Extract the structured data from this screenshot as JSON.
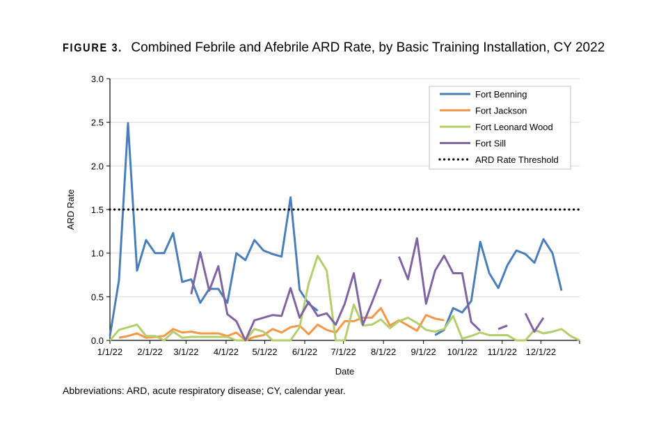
{
  "figure_label": "FIGURE 3.",
  "footnote": "Abbreviations: ARD, acute respiratory disease; CY, calendar year.",
  "chart_data": {
    "type": "line",
    "title": "Combined Febrile and Afebrile ARD Rate, by Basic Training Installation, CY 2022",
    "xlabel": "Date",
    "ylabel": "ARD Rate",
    "ylim": [
      0,
      3.0
    ],
    "yticks": [
      "0.0",
      "0.5",
      "1.0",
      "1.5",
      "2.0",
      "2.5",
      "3.0"
    ],
    "xlim": [
      "2022-01-01",
      "2022-12-31"
    ],
    "xticks": [
      {
        "date": "2022-01-01",
        "label": "1/1/22"
      },
      {
        "date": "2022-02-01",
        "label": "2/1/22"
      },
      {
        "date": "2022-03-01",
        "label": "3/1/22"
      },
      {
        "date": "2022-04-01",
        "label": "4/1/22"
      },
      {
        "date": "2022-05-01",
        "label": "5/1/22"
      },
      {
        "date": "2022-06-01",
        "label": "6/1/22"
      },
      {
        "date": "2022-07-01",
        "label": "7/1/22"
      },
      {
        "date": "2022-08-01",
        "label": "8/1/22"
      },
      {
        "date": "2022-09-01",
        "label": "9/1/22"
      },
      {
        "date": "2022-10-01",
        "label": "10/1/22"
      },
      {
        "date": "2022-11-01",
        "label": "11/1/22"
      },
      {
        "date": "2022-12-01",
        "label": "12/1/22"
      }
    ],
    "grid": true,
    "legend_position": "top-right",
    "x": [
      "2022-01-01",
      "2022-01-08",
      "2022-01-15",
      "2022-01-22",
      "2022-01-29",
      "2022-02-05",
      "2022-02-12",
      "2022-02-19",
      "2022-02-26",
      "2022-03-05",
      "2022-03-12",
      "2022-03-19",
      "2022-03-26",
      "2022-04-02",
      "2022-04-09",
      "2022-04-16",
      "2022-04-23",
      "2022-04-30",
      "2022-05-07",
      "2022-05-14",
      "2022-05-21",
      "2022-05-28",
      "2022-06-04",
      "2022-06-11",
      "2022-06-18",
      "2022-06-25",
      "2022-07-02",
      "2022-07-09",
      "2022-07-16",
      "2022-07-23",
      "2022-07-30",
      "2022-08-06",
      "2022-08-13",
      "2022-08-20",
      "2022-08-27",
      "2022-09-03",
      "2022-09-10",
      "2022-09-17",
      "2022-09-24",
      "2022-10-01",
      "2022-10-08",
      "2022-10-15",
      "2022-10-22",
      "2022-10-29",
      "2022-11-05",
      "2022-11-12",
      "2022-11-19",
      "2022-11-26",
      "2022-12-03",
      "2022-12-10",
      "2022-12-17",
      "2022-12-24",
      "2022-12-31"
    ],
    "series": [
      {
        "name": "Fort Benning",
        "color": "#4a7ebb",
        "style": "solid",
        "values": [
          0.05,
          0.69,
          2.49,
          0.8,
          1.15,
          1.0,
          1.0,
          1.23,
          0.67,
          0.7,
          0.43,
          0.59,
          0.59,
          0.43,
          1.0,
          0.92,
          1.15,
          1.03,
          0.99,
          0.96,
          1.64,
          0.58,
          0.42,
          0.34,
          null,
          null,
          null,
          null,
          null,
          null,
          null,
          null,
          null,
          null,
          null,
          null,
          0.06,
          0.12,
          0.37,
          0.32,
          0.45,
          1.13,
          0.77,
          0.6,
          0.86,
          1.03,
          0.99,
          0.89,
          1.16,
          1.0,
          0.57,
          null,
          null
        ]
      },
      {
        "name": "Fort Jackson",
        "color": "#f79646",
        "style": "solid",
        "values": [
          null,
          0.03,
          0.05,
          0.08,
          0.03,
          0.04,
          0.05,
          0.13,
          0.09,
          0.1,
          0.08,
          0.08,
          0.08,
          0.05,
          0.09,
          0.0,
          0.04,
          0.06,
          0.13,
          0.09,
          0.15,
          0.17,
          0.07,
          0.18,
          0.12,
          0.09,
          0.22,
          0.22,
          0.26,
          0.26,
          0.37,
          0.17,
          0.23,
          0.17,
          0.11,
          0.29,
          0.25,
          0.23,
          null,
          null,
          null,
          null,
          null,
          null,
          null,
          null,
          null,
          null,
          null,
          null,
          null,
          null,
          null
        ]
      },
      {
        "name": "Fort Leonard Wood",
        "color": "#b3cf6b",
        "style": "solid",
        "values": [
          0.0,
          0.12,
          0.15,
          0.18,
          0.05,
          0.05,
          0.0,
          0.1,
          0.03,
          0.04,
          0.04,
          0.04,
          0.04,
          0.04,
          0.0,
          0.0,
          0.13,
          0.1,
          0.0,
          0.0,
          0.0,
          0.15,
          0.65,
          0.97,
          0.8,
          0.0,
          0.0,
          0.41,
          0.17,
          0.18,
          0.24,
          0.14,
          0.22,
          0.26,
          0.2,
          0.12,
          0.1,
          0.13,
          0.28,
          0.02,
          0.05,
          0.09,
          0.06,
          0.06,
          0.06,
          0.0,
          0.0,
          0.12,
          0.08,
          0.1,
          0.13,
          0.05,
          0.0
        ]
      },
      {
        "name": "Fort Sill",
        "color": "#8064a2",
        "style": "solid",
        "values": [
          null,
          null,
          null,
          null,
          null,
          null,
          null,
          null,
          null,
          0.53,
          1.01,
          0.57,
          0.85,
          0.3,
          0.22,
          0.0,
          0.23,
          0.26,
          0.29,
          0.28,
          0.6,
          0.26,
          0.44,
          0.28,
          0.31,
          0.18,
          0.42,
          0.77,
          0.18,
          0.43,
          0.7,
          null,
          0.96,
          0.7,
          1.17,
          0.42,
          0.8,
          0.97,
          0.77,
          0.77,
          0.21,
          0.11,
          null,
          0.13,
          0.17,
          null,
          0.31,
          0.1,
          0.26,
          null,
          null,
          null,
          null
        ]
      },
      {
        "name": "ARD Rate Threshold",
        "color": "#000000",
        "style": "dotted",
        "values": [
          1.5,
          1.5,
          1.5,
          1.5,
          1.5,
          1.5,
          1.5,
          1.5,
          1.5,
          1.5,
          1.5,
          1.5,
          1.5,
          1.5,
          1.5,
          1.5,
          1.5,
          1.5,
          1.5,
          1.5,
          1.5,
          1.5,
          1.5,
          1.5,
          1.5,
          1.5,
          1.5,
          1.5,
          1.5,
          1.5,
          1.5,
          1.5,
          1.5,
          1.5,
          1.5,
          1.5,
          1.5,
          1.5,
          1.5,
          1.5,
          1.5,
          1.5,
          1.5,
          1.5,
          1.5,
          1.5,
          1.5,
          1.5,
          1.5,
          1.5,
          1.5,
          1.5,
          1.5
        ]
      }
    ]
  }
}
